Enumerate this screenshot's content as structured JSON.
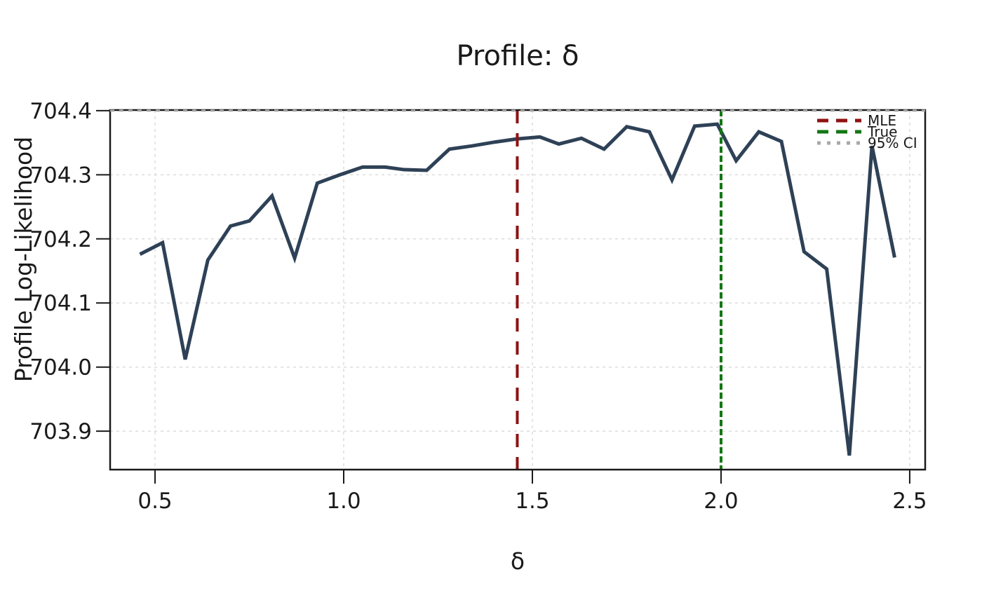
{
  "figure": {
    "title": "Profile: δ",
    "xlabel": "δ",
    "ylabel": "Profile Log-Likelihood"
  },
  "chart_data": {
    "type": "line",
    "title": "Profile: δ",
    "xlabel": "δ",
    "ylabel": "Profile Log-Likelihood",
    "grid": true,
    "xlim": [
      0.381,
      2.541
    ],
    "ylim": [
      703.84,
      704.401
    ],
    "x_ticks": {
      "values": [
        0.5,
        1.0,
        1.5,
        2.0,
        2.5
      ],
      "labels": [
        "0.5",
        "1.0",
        "1.5",
        "2.0",
        "2.5"
      ]
    },
    "y_ticks": {
      "values": [
        703.9,
        704.0,
        704.1,
        704.2,
        704.3,
        704.4
      ],
      "labels": [
        "703.9",
        "704.0",
        "704.1",
        "704.2",
        "704.3",
        "704.4"
      ]
    },
    "series": [
      {
        "name": "profile-log-likelihood",
        "color": "#2e4156",
        "x": [
          0.46,
          0.52,
          0.58,
          0.64,
          0.7,
          0.75,
          0.81,
          0.87,
          0.93,
          0.99,
          1.05,
          1.11,
          1.16,
          1.22,
          1.28,
          1.34,
          1.4,
          1.46,
          1.52,
          1.57,
          1.63,
          1.69,
          1.75,
          1.81,
          1.87,
          1.93,
          1.99,
          2.04,
          2.1,
          2.16,
          2.22,
          2.28,
          2.34,
          2.4,
          2.46
        ],
        "y": [
          704.176,
          704.194,
          704.012,
          704.167,
          704.22,
          704.228,
          704.267,
          704.17,
          704.287,
          704.3,
          704.312,
          704.312,
          704.308,
          704.307,
          704.34,
          704.345,
          704.351,
          704.356,
          704.359,
          704.348,
          704.357,
          704.34,
          704.375,
          704.367,
          704.292,
          704.376,
          704.379,
          704.322,
          704.367,
          704.352,
          704.18,
          704.153,
          703.862,
          704.345,
          704.171
        ]
      }
    ],
    "reference_lines": {
      "mle": {
        "orientation": "vertical",
        "x": 1.46,
        "label": "MLE",
        "color": "#8e1212",
        "style": "dashed"
      },
      "true": {
        "orientation": "vertical",
        "x": 2.0,
        "label": "True",
        "color": "#137613",
        "style": "dashed"
      },
      "ci95": {
        "orientation": "horizontal",
        "y": 704.4,
        "label": "95% CI",
        "color": "#a8a8a8",
        "style": "dotted"
      }
    },
    "legend": {
      "position": "upper right",
      "entries": [
        {
          "label": "MLE",
          "color": "#8e1212",
          "style": "dashed"
        },
        {
          "label": "True",
          "color": "#137613",
          "style": "dashed"
        },
        {
          "label": "95% CI",
          "color": "#a8a8a8",
          "style": "dotted"
        }
      ]
    },
    "colors": {
      "curve": "#2e4156",
      "grid": "#dcdcdc",
      "frame": "#1a1a1a",
      "background": "#ffffff"
    }
  }
}
